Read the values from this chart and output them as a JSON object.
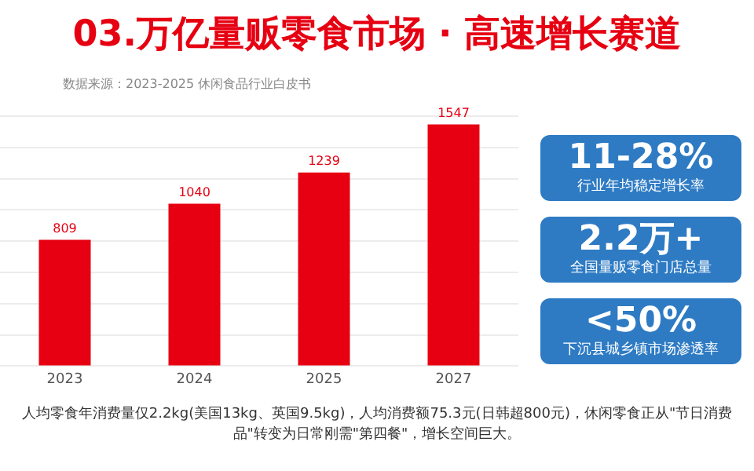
{
  "chart_data": [
    {
      "type": "bar",
      "title": "03.万亿量贩零食市场 · 高速增长赛道",
      "subtitle": "数据来源：2023-2025 休闲食品行业白皮书",
      "categories": [
        "2023",
        "2024",
        "2025",
        "2027"
      ],
      "values": [
        809,
        1040,
        1239,
        1547
      ],
      "color": "#e60012",
      "ylim": [
        0,
        1600
      ],
      "yticks": [
        {
          "value": 0,
          "label": null
        },
        {
          "value": 200,
          "label": null
        },
        {
          "value": 400,
          "label": null
        },
        {
          "value": 600,
          "label": null
        },
        {
          "value": 800,
          "label": null
        },
        {
          "value": 1000,
          "label": null
        },
        {
          "value": 1200,
          "label": null
        },
        {
          "value": 1400,
          "label": null
        },
        {
          "value": 1600,
          "label": null
        }
      ],
      "tick_labels": "x",
      "grid": "y",
      "legend": false,
      "data_labels": true,
      "annotations": [
        "人均零食年消费量仅2.2kg(美国13kg、英国9.5kg)，人均消费额75.3元(日韩超800元)，休闲零食正从\"节日消费品\"转变为日常刚需\"第四餐\"，增长空间巨大。"
      ]
    },
    {
      "type": "other",
      "annotations": [
        "11-28%",
        "行业年均稳定增长率",
        "2.2万+",
        "全国量贩零食门店总量",
        "<50%",
        "下沉县城乡镇市场渗透率"
      ]
    }
  ]
}
